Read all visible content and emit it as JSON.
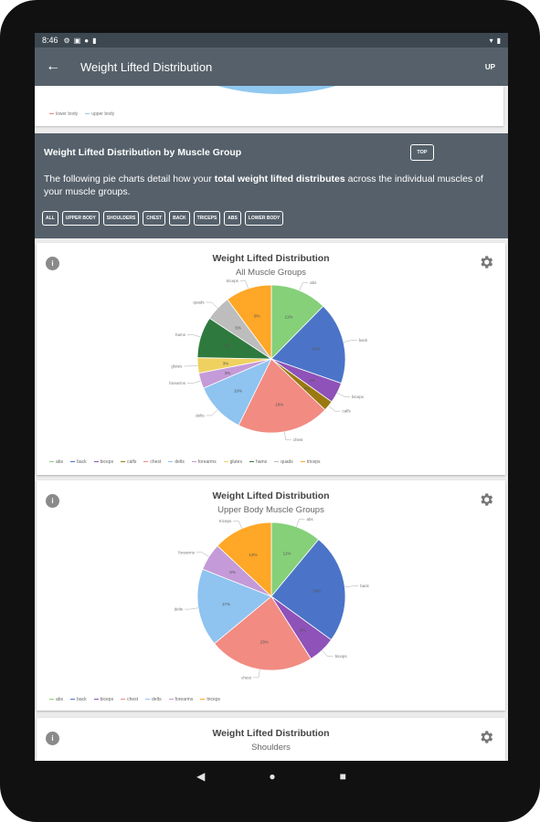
{
  "status": {
    "time": "8:46",
    "left_icons": [
      "gear-icon",
      "card-icon",
      "pin-icon",
      "sd-icon"
    ],
    "right_icons": [
      "wifi-icon",
      "battery-icon"
    ]
  },
  "appbar": {
    "title": "Weight Lifted Distribution",
    "up_label": "UP"
  },
  "top_card": {
    "legend": [
      "lower body",
      "upper body"
    ],
    "legend_colors": [
      "#f08080",
      "#90c8f0"
    ]
  },
  "section": {
    "heading": "Weight Lifted Distribution by Muscle Group",
    "top_label": "TOP",
    "desc_pre": "The following pie charts detail how your ",
    "desc_bold": "total weight lifted distributes",
    "desc_post": " across the individual muscles of your muscle groups.",
    "chips": [
      "ALL",
      "UPPER BODY",
      "SHOULDERS",
      "CHEST",
      "BACK",
      "TRICEPS",
      "ABS",
      "LOWER BODY"
    ]
  },
  "cards": [
    {
      "title": "Weight Lifted Distribution",
      "subtitle": "All Muscle Groups"
    },
    {
      "title": "Weight Lifted Distribution",
      "subtitle": "Upper Body Muscle Groups"
    },
    {
      "title": "Weight Lifted Distribution",
      "subtitle": "Shoulders"
    }
  ],
  "chart_data": [
    {
      "type": "pie",
      "title": "Weight Lifted Distribution",
      "subtitle": "All Muscle Groups",
      "categories": [
        "abs",
        "back",
        "biceps",
        "calfs",
        "chest",
        "delts",
        "forearms",
        "glutes",
        "hams",
        "quads",
        "triceps"
      ],
      "values": [
        11,
        16,
        4,
        2,
        18,
        10,
        3,
        3,
        8,
        5,
        9
      ],
      "colors": [
        "#86d07a",
        "#4b74c8",
        "#8e52b8",
        "#9a7a10",
        "#f28b82",
        "#8fc3f0",
        "#c49ad8",
        "#efd160",
        "#2e7a3e",
        "#bdbdbd",
        "#ffa726"
      ],
      "value_labels": [
        "11%",
        "16%",
        "4%",
        "2%",
        "18%",
        "10%",
        "3%",
        "3%",
        "8%",
        "5%",
        "9%"
      ]
    },
    {
      "type": "pie",
      "title": "Weight Lifted Distribution",
      "subtitle": "Upper Body Muscle Groups",
      "categories": [
        "abs",
        "back",
        "biceps",
        "chest",
        "delts",
        "forearms",
        "triceps"
      ],
      "values": [
        11,
        24,
        6,
        23,
        17,
        6,
        13
      ],
      "colors": [
        "#86d07a",
        "#4b74c8",
        "#8e52b8",
        "#f28b82",
        "#8fc3f0",
        "#c49ad8",
        "#ffa726"
      ],
      "value_labels": [
        "11%",
        "24%",
        "6%",
        "23%",
        "17%",
        "6%",
        "13%"
      ]
    }
  ]
}
